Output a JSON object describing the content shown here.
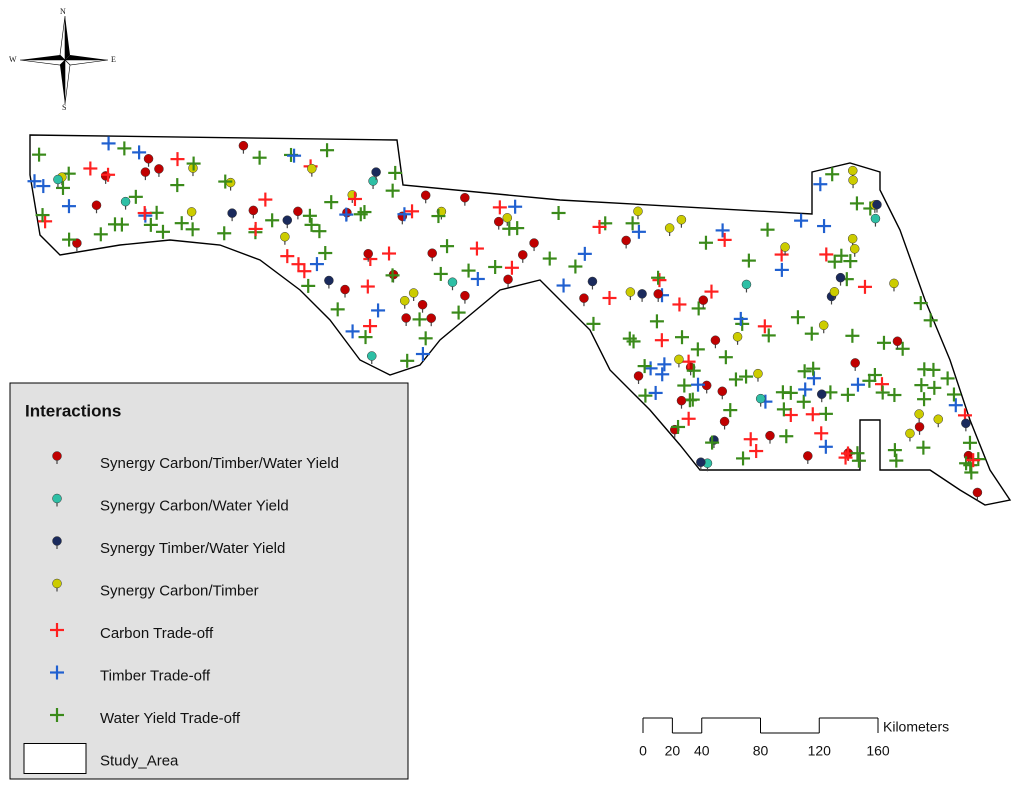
{
  "compass": {
    "north": "N",
    "south": "S",
    "east": "E",
    "west": "W"
  },
  "legend": {
    "title": "Interactions",
    "items": [
      {
        "label": "Synergy Carbon/Timber/Water Yield",
        "symbol": "pin",
        "color": "#c00000"
      },
      {
        "label": "Synergy Carbon/Water Yield",
        "symbol": "pin",
        "color": "#2ebfa5"
      },
      {
        "label": "Synergy Timber/Water Yield",
        "symbol": "pin",
        "color": "#1a2a5c"
      },
      {
        "label": "Synergy Carbon/Timber",
        "symbol": "pin",
        "color": "#cccc00"
      },
      {
        "label": "Carbon Trade-off",
        "symbol": "cross",
        "color": "#ff2020"
      },
      {
        "label": "Timber Trade-off",
        "symbol": "cross",
        "color": "#2060d0"
      },
      {
        "label": "Water Yield Trade-off",
        "symbol": "cross",
        "color": "#3a8a1a"
      },
      {
        "label": "Study_Area",
        "symbol": "box",
        "color": "#ffffff"
      }
    ]
  },
  "scale_bar": {
    "unit": "Kilometers",
    "ticks": [
      0,
      20,
      40,
      80,
      120,
      160
    ]
  }
}
